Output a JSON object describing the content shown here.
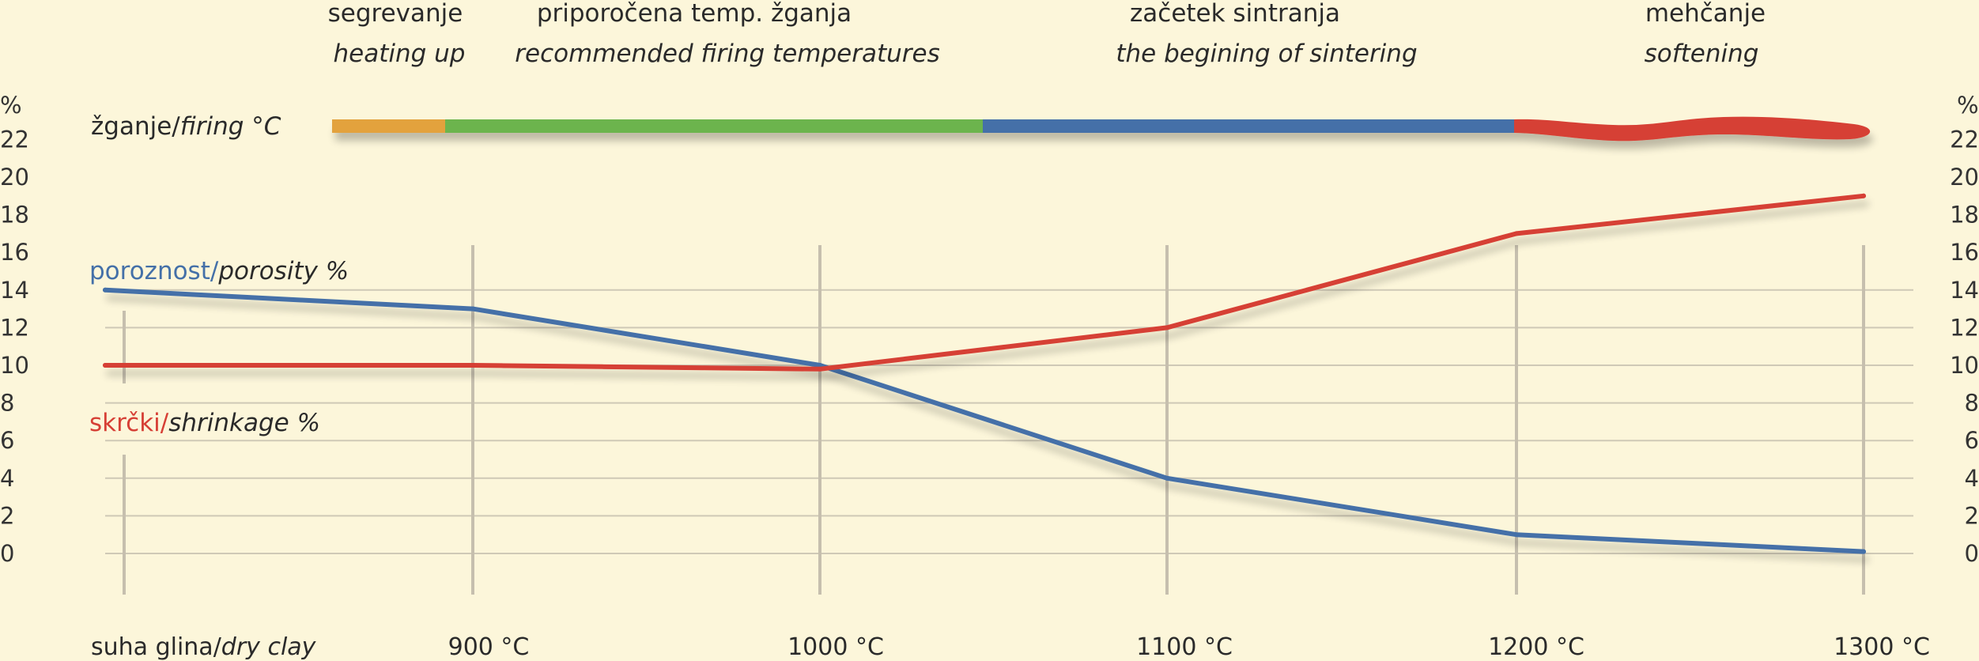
{
  "chart_data": {
    "type": "line",
    "phases": [
      {
        "label": "segrevanje",
        "sublabel": "heating up",
        "color": "#e3a23d"
      },
      {
        "label": "priporočena temp. žganja",
        "sublabel": "recommended firing temperatures",
        "color": "#6cb44e"
      },
      {
        "label": "začetek sintranja",
        "sublabel": "the begining of sintering",
        "color": "#4470a8"
      },
      {
        "label": "mehčanje",
        "sublabel": "softening",
        "color": "#d63f35"
      }
    ],
    "phase_bar_label_prefix": "žganje/",
    "phase_bar_label_suffix": "firing °C",
    "categories": [
      "suha glina/dry clay",
      "900 °C",
      "1000 °C",
      "1100 °C",
      "1200 °C",
      "1300 °C"
    ],
    "category_prefix": "suha glina/",
    "category_suffix": "dry clay",
    "y_unit_left": "%",
    "y_unit_right": "%",
    "yticks": [
      0,
      2,
      4,
      6,
      8,
      10,
      12,
      14,
      16,
      18,
      20,
      22
    ],
    "ylim": [
      0,
      22
    ],
    "series": [
      {
        "name": "poroznost/porosity %",
        "name_prefix": "poroznost/",
        "name_suffix": "porosity %",
        "color": "#4470a8",
        "values": [
          14,
          13,
          10,
          4,
          1,
          0.1
        ]
      },
      {
        "name": "skrčki/shrinkage %",
        "name_prefix": "skrčki/",
        "name_suffix": "shrinkage %",
        "color": "#d63f35",
        "values": [
          10,
          10,
          9.8,
          12,
          17,
          19
        ]
      }
    ],
    "grid": true
  }
}
